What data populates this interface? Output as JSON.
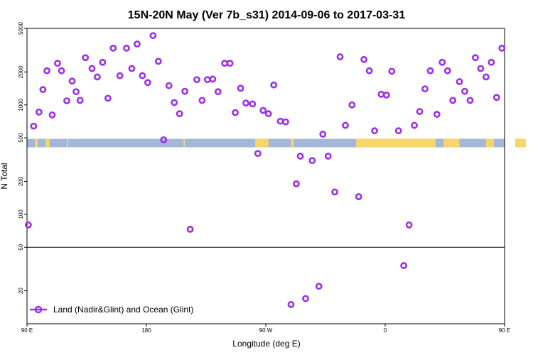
{
  "chart_data": {
    "type": "scatter",
    "title": "15N-20N May (Ver 7b_s31)   2014-09-06 to 2017-03-31",
    "xlabel": "Longitude (deg E)",
    "ylabel": "N Total",
    "y_scale": "log",
    "xlim": [
      90,
      450
    ],
    "ylim": [
      10,
      5000
    ],
    "x_ticks": [
      {
        "value": 90,
        "label": "90 E"
      },
      {
        "value": 180,
        "label": "180"
      },
      {
        "value": 270,
        "label": "90 W"
      },
      {
        "value": 360,
        "label": "0"
      },
      {
        "value": 450,
        "label": "90 E"
      },
      {
        "value": 540,
        "label": "180"
      }
    ],
    "y_ticks": [
      {
        "value": 20,
        "label": "20"
      },
      {
        "value": 50,
        "label": "50"
      },
      {
        "value": 100,
        "label": "100"
      },
      {
        "value": 200,
        "label": "200"
      },
      {
        "value": 500,
        "label": "500"
      },
      {
        "value": 1000,
        "label": "1000"
      },
      {
        "value": 2000,
        "label": "2000"
      },
      {
        "value": 5000,
        "label": "5000"
      }
    ],
    "x_axis_max": 540,
    "reference_line_y": 50,
    "land_mask_band": {
      "y_low": 410,
      "y_high": 490
    },
    "colors": {
      "series": "#9b30e8",
      "ocean": "#a3b8d8",
      "land": "#f7d56b"
    },
    "land_segments": [
      [
        96,
        98
      ],
      [
        104,
        107
      ],
      [
        120,
        121
      ],
      [
        208,
        209
      ],
      [
        262,
        272
      ],
      [
        289,
        291
      ],
      [
        338,
        398
      ],
      [
        404,
        416
      ],
      [
        436,
        442
      ],
      [
        458,
        466
      ],
      [
        478,
        481
      ]
    ],
    "legend": {
      "label": "Land (Nadir&Glint) and Ocean (Glint)",
      "position": "bottom-left"
    },
    "series": [
      {
        "name": "Land (Nadir&Glint) and Ocean (Glint)",
        "points": [
          [
            91,
            80
          ],
          [
            95,
            640
          ],
          [
            99,
            860
          ],
          [
            102,
            1380
          ],
          [
            105,
            2050
          ],
          [
            109,
            810
          ],
          [
            113,
            2400
          ],
          [
            116,
            2050
          ],
          [
            120,
            1090
          ],
          [
            124,
            1650
          ],
          [
            127,
            1320
          ],
          [
            130,
            1100
          ],
          [
            134,
            2700
          ],
          [
            139,
            2150
          ],
          [
            143,
            1800
          ],
          [
            147,
            2450
          ],
          [
            151,
            1150
          ],
          [
            155,
            3300
          ],
          [
            160,
            1850
          ],
          [
            165,
            3300
          ],
          [
            169,
            2150
          ],
          [
            173,
            3600
          ],
          [
            177,
            1850
          ],
          [
            181,
            1600
          ],
          [
            185,
            4300
          ],
          [
            189,
            2500
          ],
          [
            193,
            480
          ],
          [
            197,
            1500
          ],
          [
            201,
            1050
          ],
          [
            205,
            830
          ],
          [
            209,
            1330
          ],
          [
            213,
            73
          ],
          [
            218,
            1700
          ],
          [
            222,
            1100
          ],
          [
            226,
            1700
          ],
          [
            230,
            1720
          ],
          [
            234,
            1320
          ],
          [
            239,
            2400
          ],
          [
            243,
            2400
          ],
          [
            247,
            850
          ],
          [
            251,
            1420
          ],
          [
            255,
            1040
          ],
          [
            260,
            1020
          ],
          [
            264,
            360
          ],
          [
            268,
            890
          ],
          [
            272,
            830
          ],
          [
            276,
            1520
          ],
          [
            281,
            710
          ],
          [
            285,
            700
          ],
          [
            289,
            15
          ],
          [
            293,
            190
          ],
          [
            296,
            340
          ],
          [
            300,
            17
          ],
          [
            305,
            310
          ],
          [
            310,
            22
          ],
          [
            313,
            540
          ],
          [
            317,
            340
          ],
          [
            322,
            160
          ],
          [
            326,
            2750
          ],
          [
            330,
            650
          ],
          [
            335,
            1000
          ],
          [
            340,
            145
          ],
          [
            344,
            2600
          ],
          [
            348,
            2050
          ],
          [
            352,
            580
          ],
          [
            357,
            1250
          ],
          [
            361,
            1230
          ],
          [
            365,
            2030
          ],
          [
            370,
            580
          ],
          [
            374,
            34
          ],
          [
            378,
            80
          ],
          [
            382,
            650
          ],
          [
            386,
            870
          ],
          [
            390,
            1400
          ],
          [
            394,
            2050
          ],
          [
            399,
            820
          ],
          [
            403,
            2450
          ],
          [
            407,
            2050
          ],
          [
            411,
            1100
          ],
          [
            416,
            1630
          ],
          [
            420,
            1330
          ],
          [
            424,
            1100
          ],
          [
            428,
            2700
          ],
          [
            432,
            2150
          ],
          [
            436,
            1800
          ],
          [
            440,
            2450
          ],
          [
            444,
            1170
          ],
          [
            448,
            3300
          ]
        ]
      }
    ]
  }
}
